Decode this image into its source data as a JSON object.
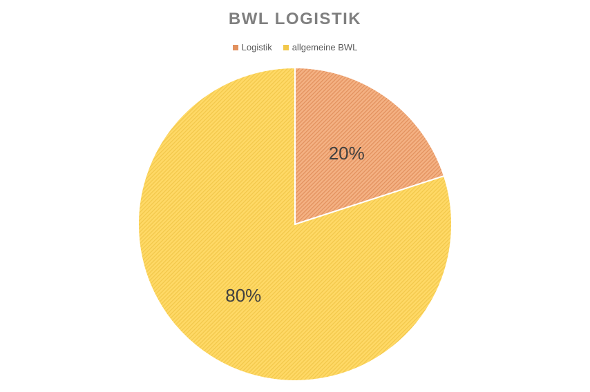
{
  "chart_data": {
    "type": "pie",
    "title": "BWL LOGISTIK",
    "legend_position": "top",
    "categories": [
      "Logistik",
      "allgemeine BWL"
    ],
    "values": [
      20,
      80
    ],
    "labels": [
      "20%",
      "80%"
    ],
    "colors": [
      "#f4b183",
      "#ffd966"
    ],
    "stroke_colors": [
      "#e2915e",
      "#f2c84b"
    ],
    "pattern": "diagonal-hatch"
  }
}
